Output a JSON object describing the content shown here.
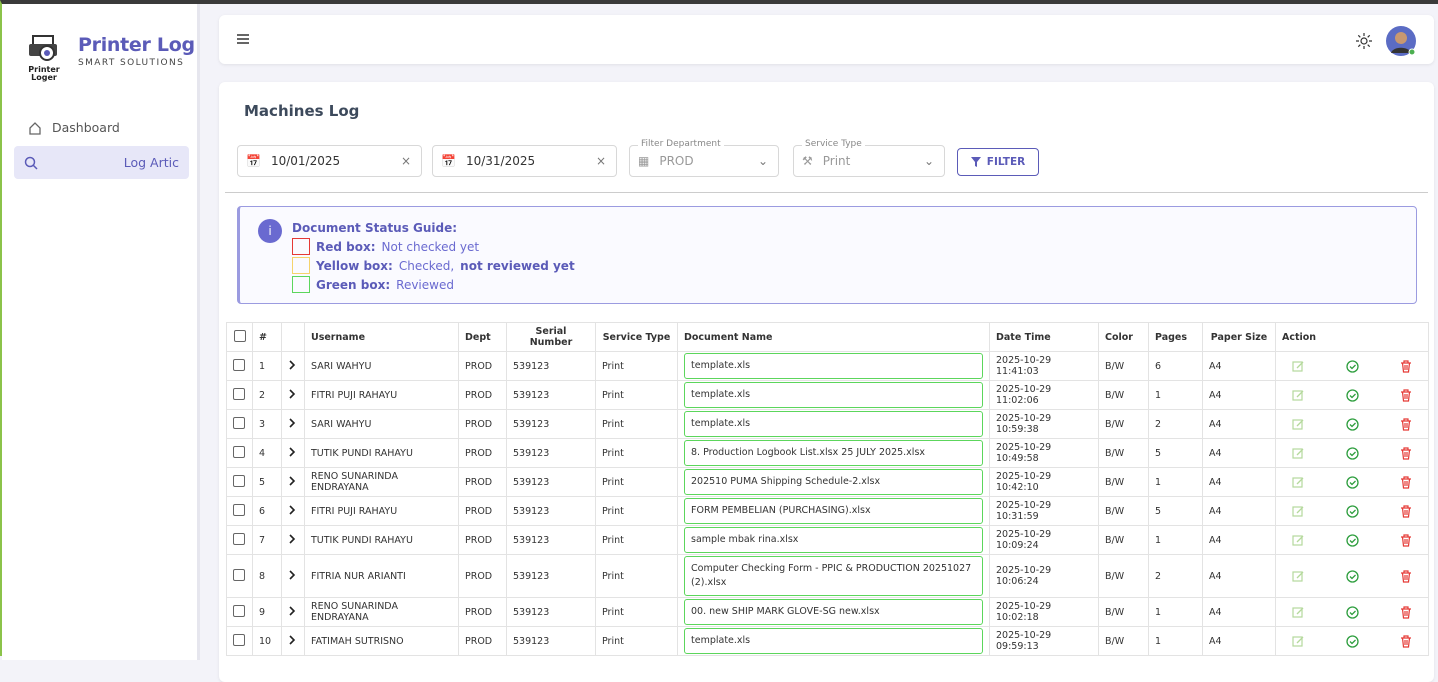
{
  "brand": {
    "logo_text": "Printer Loger",
    "title": "Printer Log",
    "subtitle": "SMART SOLUTIONS"
  },
  "nav": [
    "Dashboard",
    "Log Artic"
  ],
  "page_title": "Machines Log",
  "filters": {
    "date_from": "10/01/2025",
    "date_to": "10/31/2025",
    "department_label": "Filter Department",
    "department": "PROD",
    "service_label": "Service Type",
    "service": "Print",
    "button": "FILTER"
  },
  "guide": {
    "title": "Document Status Guide:",
    "items": [
      {
        "label": "Red box:",
        "text": "Not checked yet"
      },
      {
        "label": "Yellow box:",
        "text": "Checked,",
        "emphasis": "not reviewed yet"
      },
      {
        "label": "Green box:",
        "text": "Reviewed"
      }
    ]
  },
  "table": {
    "headers": [
      "#",
      "Username",
      "Dept",
      "Serial Number",
      "Service Type",
      "Document Name",
      "Date Time",
      "Color",
      "Pages",
      "Paper Size",
      "Action"
    ],
    "rows": [
      [
        "1",
        "SARI WAHYU",
        "PROD",
        "539123",
        "Print",
        "template.xls",
        "2025-10-29 11:41:03",
        "B/W",
        "6",
        "A4"
      ],
      [
        "2",
        "FITRI PUJI RAHAYU",
        "PROD",
        "539123",
        "Print",
        "template.xls",
        "2025-10-29 11:02:06",
        "B/W",
        "1",
        "A4"
      ],
      [
        "3",
        "SARI WAHYU",
        "PROD",
        "539123",
        "Print",
        "template.xls",
        "2025-10-29 10:59:38",
        "B/W",
        "2",
        "A4"
      ],
      [
        "4",
        "TUTIK PUNDI RAHAYU",
        "PROD",
        "539123",
        "Print",
        "8. Production Logbook List.xlsx 25 JULY 2025.xlsx",
        "2025-10-29 10:49:58",
        "B/W",
        "5",
        "A4"
      ],
      [
        "5",
        "RENO SUNARINDA ENDRAYANA",
        "PROD",
        "539123",
        "Print",
        "202510 PUMA Shipping Schedule-2.xlsx",
        "2025-10-29 10:42:10",
        "B/W",
        "1",
        "A4"
      ],
      [
        "6",
        "FITRI PUJI RAHAYU",
        "PROD",
        "539123",
        "Print",
        "FORM PEMBELIAN (PURCHASING).xlsx",
        "2025-10-29 10:31:59",
        "B/W",
        "5",
        "A4"
      ],
      [
        "7",
        "TUTIK PUNDI RAHAYU",
        "PROD",
        "539123",
        "Print",
        "sample mbak rina.xlsx",
        "2025-10-29 10:09:24",
        "B/W",
        "1",
        "A4"
      ],
      [
        "8",
        "FITRIA NUR ARIANTI",
        "PROD",
        "539123",
        "Print",
        "Computer Checking Form - PPIC & PRODUCTION 20251027 (2).xlsx",
        "2025-10-29 10:06:24",
        "B/W",
        "2",
        "A4"
      ],
      [
        "9",
        "RENO SUNARINDA ENDRAYANA",
        "PROD",
        "539123",
        "Print",
        "00. new SHIP MARK GLOVE-SG new.xlsx",
        "2025-10-29 10:02:18",
        "B/W",
        "1",
        "A4"
      ],
      [
        "10",
        "FATIMAH SUTRISNO",
        "PROD",
        "539123",
        "Print",
        "template.xls",
        "2025-10-29 09:59:13",
        "B/W",
        "1",
        "A4"
      ]
    ]
  }
}
